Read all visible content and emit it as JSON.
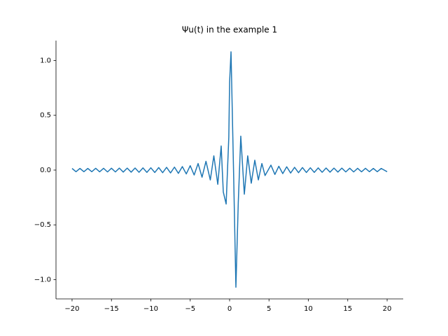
{
  "chart_data": {
    "type": "line",
    "title": "Ψu(t) in the example 1",
    "x": [
      -20,
      -19.5,
      -19,
      -18.5,
      -18,
      -17.5,
      -17,
      -16.5,
      -16,
      -15.5,
      -15,
      -14.5,
      -14,
      -13.5,
      -13,
      -12.5,
      -12,
      -11.5,
      -11,
      -10.5,
      -10,
      -9.5,
      -9,
      -8.5,
      -8,
      -7.5,
      -7,
      -6.5,
      -6,
      -5.5,
      -5,
      -4.5,
      -4,
      -3.5,
      -3,
      -2.45,
      -2.0,
      -1.5,
      -1.07,
      -0.8,
      -0.44,
      -0.1,
      0.0,
      0.18,
      0.5,
      0.8,
      1.1,
      1.42,
      1.87,
      2.3,
      2.75,
      3.2,
      3.65,
      4.1,
      4.5,
      5.25,
      5.75,
      6.25,
      6.75,
      7.25,
      7.75,
      8.25,
      8.75,
      9.25,
      9.75,
      10.25,
      10.75,
      11.25,
      11.75,
      12.25,
      12.75,
      13.25,
      13.75,
      14.25,
      14.75,
      15.25,
      15.75,
      16.25,
      16.75,
      17.25,
      17.75,
      18.25,
      18.75,
      19.25,
      20
    ],
    "series": [
      {
        "name": "Ψu(t)",
        "color": "#1f77b4",
        "values": [
          0.015,
          -0.015,
          0.015,
          -0.015,
          0.015,
          -0.015,
          0.016,
          -0.016,
          0.016,
          -0.017,
          0.017,
          -0.017,
          0.018,
          -0.018,
          0.018,
          -0.019,
          0.019,
          -0.02,
          0.02,
          -0.021,
          0.021,
          -0.022,
          0.023,
          -0.024,
          0.025,
          -0.026,
          0.027,
          -0.03,
          0.032,
          -0.035,
          0.04,
          -0.045,
          0.06,
          -0.065,
          0.08,
          -0.09,
          0.13,
          -0.13,
          0.22,
          -0.2,
          -0.31,
          0.3,
          0.8,
          1.08,
          0.0,
          -1.07,
          -0.3,
          0.31,
          -0.22,
          0.13,
          -0.12,
          0.09,
          -0.09,
          0.06,
          -0.05,
          0.045,
          -0.04,
          0.035,
          -0.032,
          0.03,
          -0.027,
          0.025,
          -0.024,
          0.023,
          -0.022,
          0.021,
          -0.021,
          0.02,
          -0.02,
          0.019,
          -0.019,
          0.018,
          -0.018,
          0.018,
          -0.017,
          0.017,
          -0.017,
          0.016,
          -0.016,
          0.016,
          -0.015,
          0.015,
          -0.015,
          0.015,
          -0.015
        ]
      }
    ],
    "xlim": [
      -22.04,
      22.04
    ],
    "xticks": [
      {
        "value": -20,
        "label": "−20"
      },
      {
        "value": -15,
        "label": "−15"
      },
      {
        "value": -10,
        "label": "−10"
      },
      {
        "value": -5,
        "label": "−5"
      },
      0,
      5,
      10,
      15,
      20
    ],
    "ylim": [
      -1.176,
      1.182
    ],
    "yticks": [
      {
        "value": -1.0,
        "label": "−1.0"
      },
      {
        "value": -0.5,
        "label": "−0.5"
      },
      {
        "value": 0.0,
        "label": "0.0"
      },
      {
        "value": 0.5,
        "label": "0.5"
      },
      {
        "value": 1.0,
        "label": "1.0"
      }
    ]
  }
}
